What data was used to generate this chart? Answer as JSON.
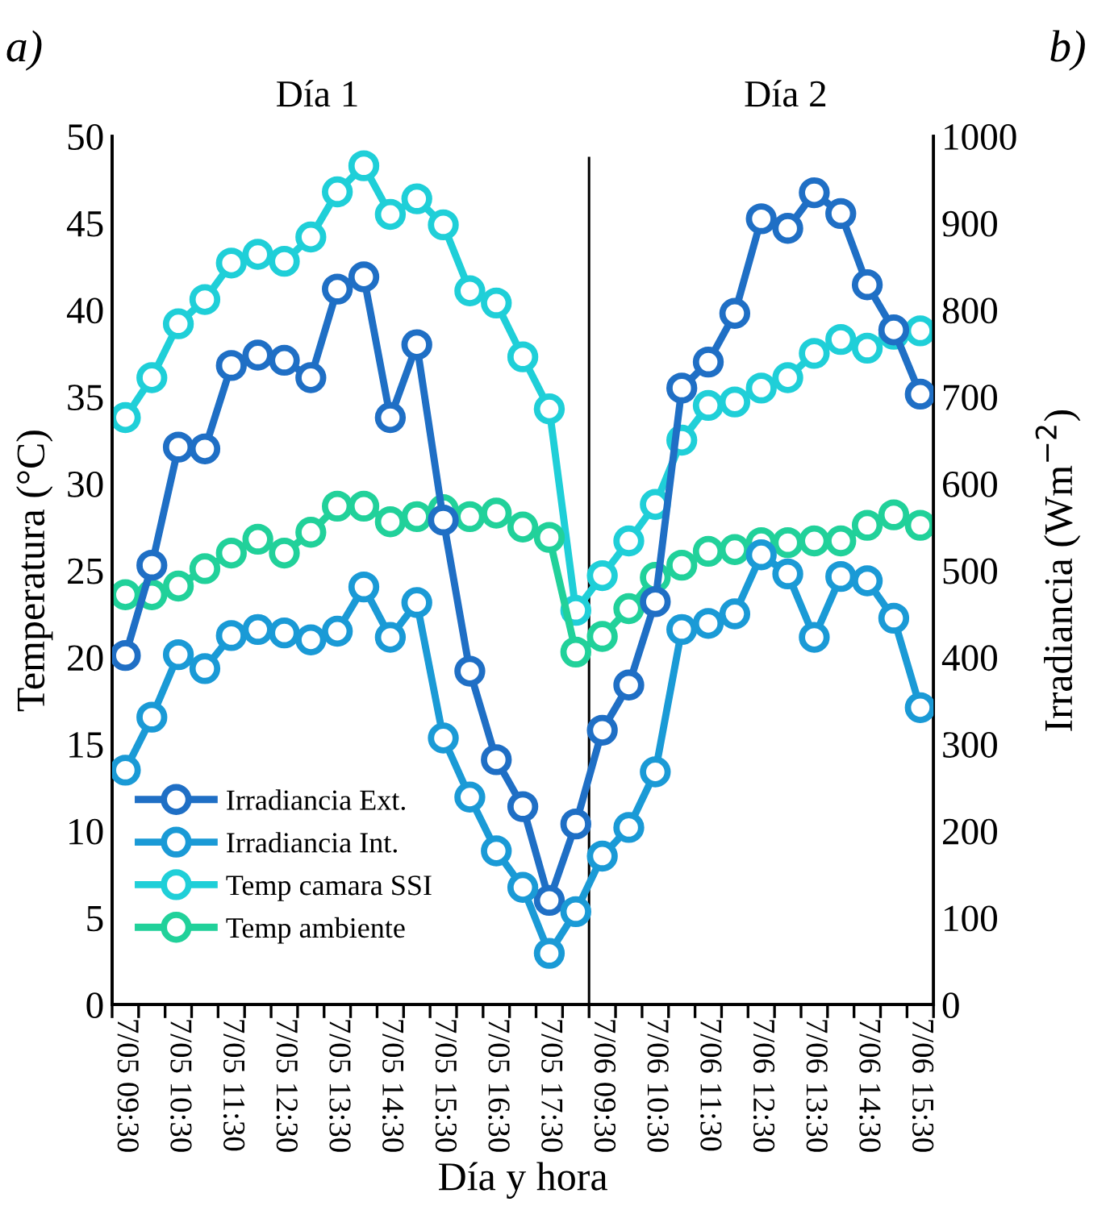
{
  "chart_data": {
    "type": "line",
    "xlabel": "Día y hora",
    "ylabel": "Temperatura (°C)",
    "y2label": "Irradiancia (Wm$^{−2}$)",
    "annotations": [
      "a)",
      "b)",
      "Día 1",
      "Día 2"
    ],
    "categories": [
      "7/05 09:30",
      null,
      "7/05 10:30",
      null,
      "7/05 11:30",
      null,
      "7/05 12:30",
      null,
      "7/05 13:30",
      null,
      "7/05 14:30",
      null,
      "7/05 15:30",
      null,
      "7/05 16:30",
      null,
      "7/05 17:30",
      null,
      "7/06 09:30",
      null,
      "7/06 10:30",
      null,
      "7/06 11:30",
      null,
      "7/06 12:30",
      null,
      "7/06 13:30",
      null,
      "7/06 14:30",
      null,
      "7/06 15:30"
    ],
    "series": [
      {
        "name": "Irradiancia Ext.",
        "color": "#1f6fc5",
        "axis": "y2",
        "values": [
          402,
          506,
          642,
          640,
          736,
          748,
          742,
          722,
          824,
          838,
          676,
          760,
          558,
          384,
          282,
          228,
          120,
          208,
          316,
          368,
          464,
          710,
          740,
          796,
          905,
          894,
          935,
          911,
          829,
          777,
          703
        ]
      },
      {
        "name": "Irradiancia Int.",
        "color": "#1a9ad6",
        "axis": "y2",
        "values": [
          270,
          331,
          403,
          387,
          425,
          432,
          428,
          420,
          430,
          481,
          423,
          463,
          307,
          239,
          177,
          135,
          59,
          107,
          171,
          204,
          268,
          432,
          439,
          450,
          518,
          496,
          423,
          493,
          488,
          445,
          342
        ]
      },
      {
        "name": "Temp camara SSI",
        "color": "#1fcfd8",
        "axis": "y",
        "values": [
          33.8,
          36.1,
          39.2,
          40.6,
          42.7,
          43.2,
          42.8,
          44.2,
          46.8,
          48.3,
          45.5,
          46.4,
          44.9,
          41.1,
          40.4,
          37.3,
          34.3,
          22.7,
          24.7,
          26.7,
          28.8,
          32.5,
          34.5,
          34.7,
          35.5,
          36.1,
          37.5,
          38.3,
          37.8,
          38.6,
          38.8
        ]
      },
      {
        "name": "Temp ambiente",
        "color": "#21d19a",
        "axis": "y",
        "values": [
          23.6,
          23.6,
          24.1,
          25.1,
          26.0,
          26.8,
          26.0,
          27.2,
          28.7,
          28.7,
          27.8,
          28.1,
          28.5,
          28.1,
          28.3,
          27.5,
          26.9,
          20.3,
          21.2,
          22.8,
          24.6,
          25.3,
          26.1,
          26.2,
          26.6,
          26.6,
          26.7,
          26.7,
          27.6,
          28.2,
          27.6
        ]
      }
    ],
    "ylim": [
      0,
      50
    ],
    "yticks": [
      0,
      5,
      10,
      15,
      20,
      25,
      30,
      35,
      40,
      45,
      50
    ],
    "y2lim": [
      0,
      1000
    ],
    "y2ticks": [
      0,
      100,
      200,
      300,
      400,
      500,
      600,
      700,
      800,
      900,
      1000
    ],
    "marker": "circle",
    "line_style": "solid",
    "grid": false,
    "legend": "bottom left"
  }
}
